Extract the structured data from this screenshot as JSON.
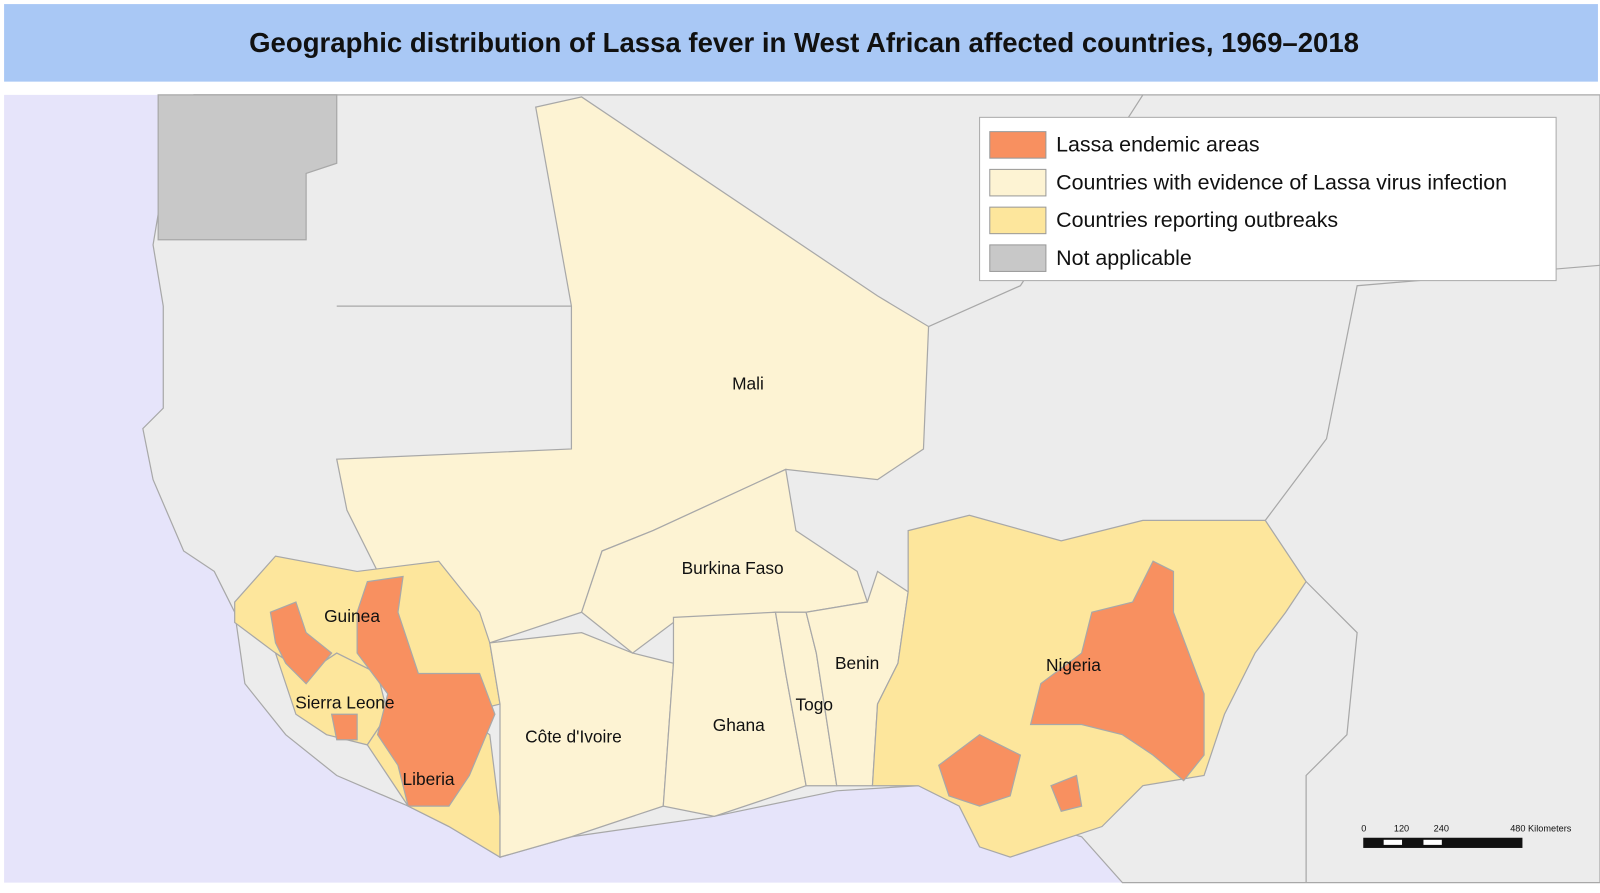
{
  "title": "Geographic distribution of Lassa fever in West African affected countries, 1969–2018",
  "legend": [
    {
      "label": "Lassa endemic areas"
    },
    {
      "label": "Countries with evidence of Lassa virus infection"
    },
    {
      "label": "Countries reporting outbreaks"
    },
    {
      "label": "Not applicable"
    }
  ],
  "countries": [
    {
      "label": "Mali"
    },
    {
      "label": "Burkina Faso"
    },
    {
      "label": "Guinea"
    },
    {
      "label": "Sierra Leone"
    },
    {
      "label": "Liberia"
    },
    {
      "label": "Côte d'Ivoire"
    },
    {
      "label": "Ghana"
    },
    {
      "label": "Togo"
    },
    {
      "label": "Benin"
    },
    {
      "label": "Nigeria"
    }
  ],
  "scale": {
    "labels": [
      "0",
      "120",
      "240",
      "480 Kilometers"
    ]
  }
}
